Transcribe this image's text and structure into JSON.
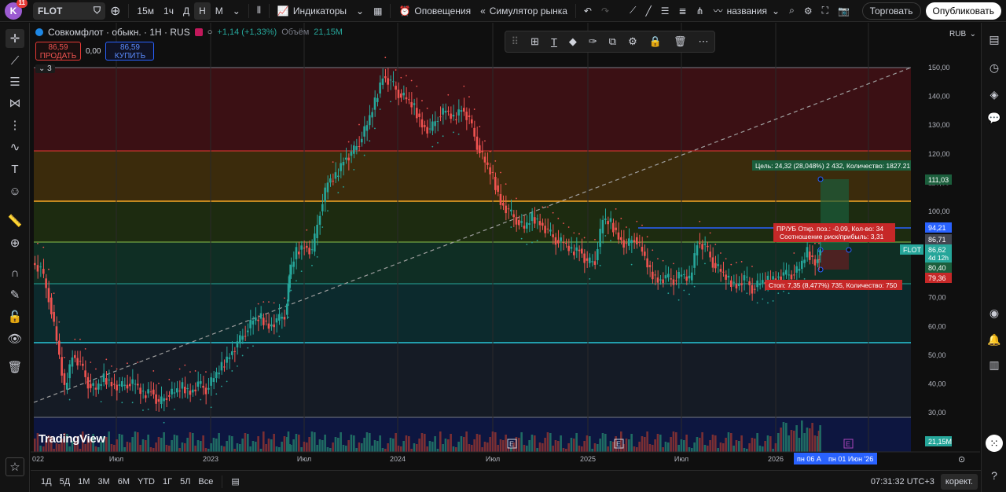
{
  "topbar": {
    "avatar_letter": "K",
    "notifications": "11",
    "symbol": "FLOT",
    "timeframes": [
      "15м",
      "1ч",
      "Д",
      "Н",
      "М"
    ],
    "active_timeframe": "Н",
    "indicators": "Индикаторы",
    "alerts": "Оповещения",
    "replay": "Симулятор рынка",
    "layout_name": "названия",
    "trade": "Торговать",
    "publish": "Опубликовать"
  },
  "chart": {
    "title": "Совкомфлот · обыкн. · 1Н · RUS",
    "change": "+1,14 (+1,33%)",
    "volume_label": "Объём",
    "volume_value": "21,15M",
    "sell_price": "86,59",
    "sell_label": "ПРОДАТЬ",
    "spread": "0,00",
    "buy_price": "86,59",
    "buy_label": "КУПИТЬ",
    "collapsed_count": "3",
    "currency": "RUB",
    "brand": "TradingView",
    "target_label": "Цель: 24,32 (28,048%) 2 432, Количество: 1827.21",
    "pnl_label": "ПР/УБ Откр. поз.: -0,09, Кол-во: 34",
    "ratio_label": "Соотношение риск/прибыль: 3,31",
    "stop_label": "Стоп: 7,35 (8,477%) 735, Количество: 750",
    "axis_ticks": [
      "150,00",
      "140,00",
      "130,00",
      "120,00",
      "110,00",
      "100,00",
      "90,00",
      "80,00",
      "70,00",
      "60,00",
      "50,00",
      "40,00",
      "30,00"
    ],
    "price_labels": {
      "target": "111,03",
      "entry_line": "94,21",
      "p1": "86,71",
      "last_symbol": "FLOT",
      "last": "86,62",
      "countdown": "4d 12h",
      "entry": "80,40",
      "stop": "79,36",
      "volume": "21,15M"
    },
    "time_ticks": [
      "022",
      "Июл",
      "2023",
      "Июл",
      "2024",
      "Июл",
      "2025",
      "Июл",
      "2026"
    ],
    "cursor_time_1": "пн 06 А",
    "cursor_time_2": "пн 01 Июн '26",
    "earnings_marker": "E",
    "colors": {
      "up": "#26a69a",
      "down": "#ef5350",
      "background": "#0f0f0f",
      "accent": "#2962ff"
    }
  },
  "bottombar": {
    "ranges": [
      "1Д",
      "5Д",
      "1М",
      "3М",
      "6М",
      "YTD",
      "1Г",
      "5Л",
      "Все"
    ],
    "clock": "07:31:32 UTC+3",
    "adjust": "корект."
  }
}
